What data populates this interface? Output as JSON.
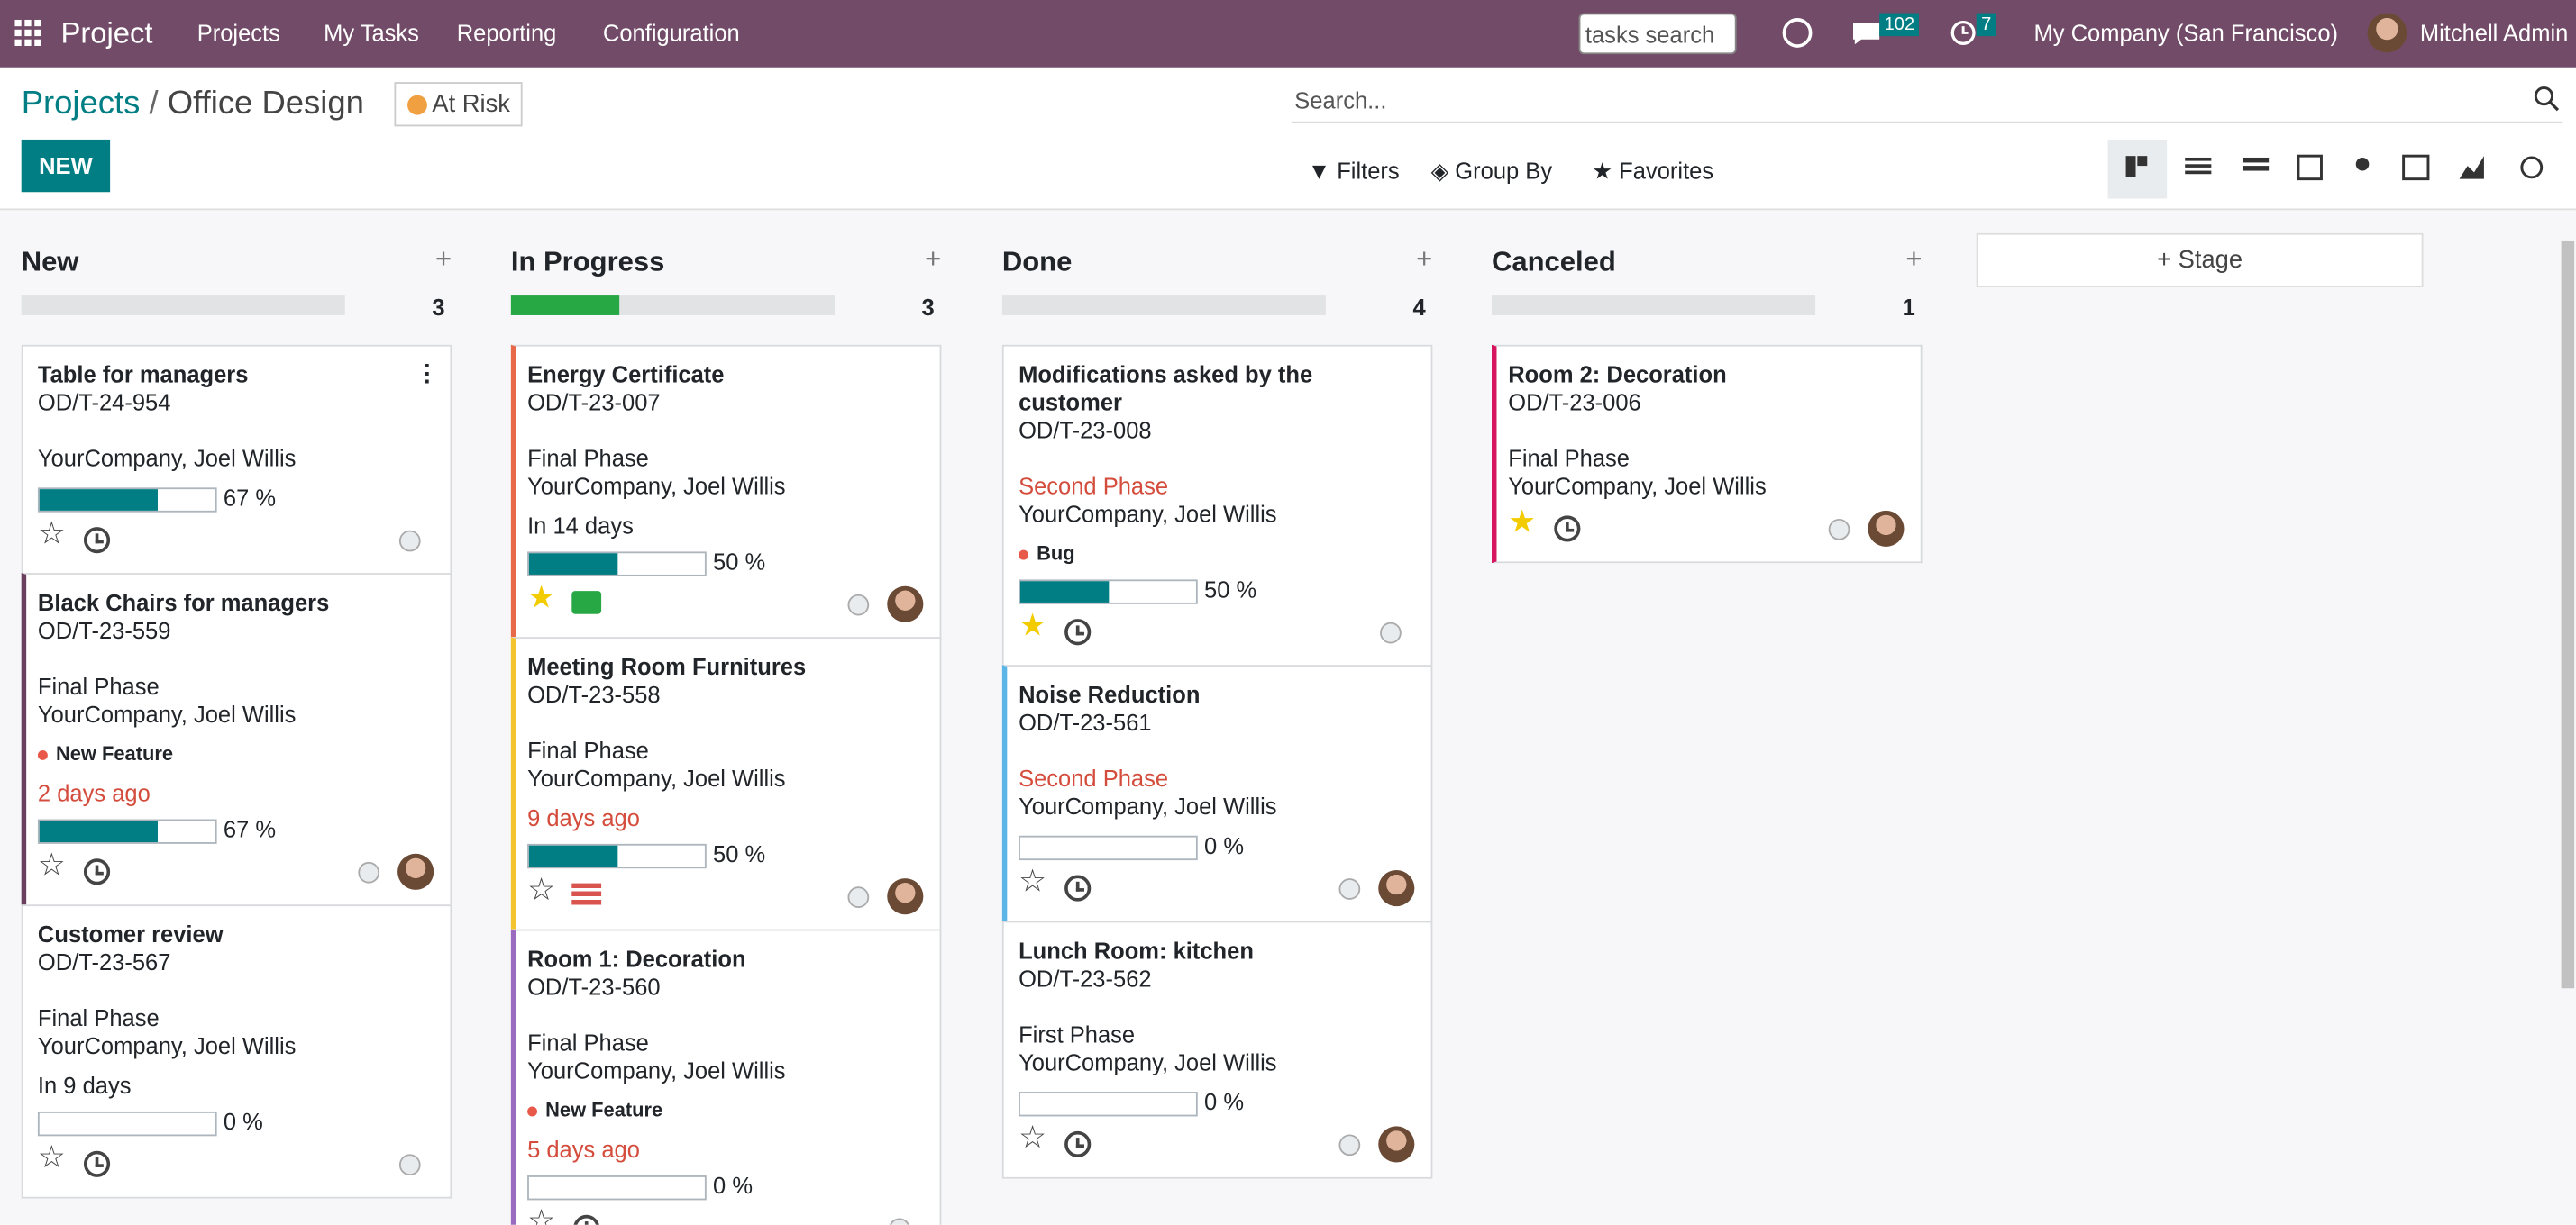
{
  "navbar": {
    "app": "Project",
    "menu": [
      "Projects",
      "My Tasks",
      "Reporting",
      "Configuration"
    ],
    "search_placeholder": "tasks search",
    "messages": 102,
    "activities": 7,
    "company": "My Company (San Francisco)",
    "user": "Mitchell Admin"
  },
  "breadcrumb": {
    "parent": "Projects",
    "current": "Office Design"
  },
  "status": "At Risk",
  "new_button": "NEW",
  "search_placeholder": "Search...",
  "filters": [
    "Filters",
    "Group By",
    "Favorites"
  ],
  "add_stage": "Stage",
  "columns": [
    {
      "name": "New",
      "count": 3,
      "cards": [
        {
          "title": "Table for managers",
          "ref": "OD/T-24-954",
          "customer": "YourCompany, Joel Willis",
          "progress": {
            "value": 67,
            "label": "67 %"
          }
        },
        {
          "title": "Black Chairs for managers",
          "ref": "OD/T-23-559",
          "stage": "Final Phase",
          "customer": "YourCompany, Joel Willis",
          "tag": "New Feature",
          "deadline": "2 days ago",
          "overdue": true,
          "progress": {
            "value": 67,
            "label": "67 %"
          },
          "avatar": true,
          "color": "#6b3e5e"
        },
        {
          "title": "Customer review",
          "ref": "OD/T-23-567",
          "stage": "Final Phase",
          "customer": "YourCompany, Joel Willis",
          "deadline": "In 9 days",
          "progress": {
            "value": 0,
            "label": "0 %"
          }
        }
      ]
    },
    {
      "name": "In Progress",
      "count": 3,
      "cards": [
        {
          "title": "Energy Certificate",
          "ref": "OD/T-23-007",
          "stage": "Final Phase",
          "customer": "YourCompany, Joel Willis",
          "deadline": "In 14 days",
          "progress": {
            "value": 50,
            "label": "50 %"
          },
          "starred": true,
          "activity": "mail",
          "avatar": true,
          "color": "#e8694a"
        },
        {
          "title": "Meeting Room Furnitures",
          "ref": "OD/T-23-558",
          "stage": "Final Phase",
          "customer": "YourCompany, Joel Willis",
          "deadline": "9 days ago",
          "overdue": true,
          "progress": {
            "value": 50,
            "label": "50 %"
          },
          "activity": "list",
          "avatar": true,
          "color": "#f4c430"
        },
        {
          "title": "Room 1: Decoration",
          "ref": "OD/T-23-560",
          "stage": "Final Phase",
          "customer": "YourCompany, Joel Willis",
          "tag": "New Feature",
          "deadline": "5 days ago",
          "overdue": true,
          "progress": {
            "value": 0,
            "label": "0 %"
          },
          "color": "#9b6bc0"
        }
      ]
    },
    {
      "name": "Done",
      "count": 4,
      "cards": [
        {
          "title": "Modifications asked by the customer",
          "ref": "OD/T-23-008",
          "stage": "Second Phase",
          "stage_alert": true,
          "customer": "YourCompany, Joel Willis",
          "tag": "Bug",
          "progress": {
            "value": 50,
            "label": "50 %"
          },
          "starred": true
        },
        {
          "title": "Noise Reduction",
          "ref": "OD/T-23-561",
          "stage": "Second Phase",
          "stage_alert": true,
          "customer": "YourCompany, Joel Willis",
          "progress": {
            "value": 0,
            "label": "0 %"
          },
          "avatar": true,
          "color": "#5bb5e6"
        },
        {
          "title": "Lunch Room: kitchen",
          "ref": "OD/T-23-562",
          "stage": "First Phase",
          "customer": "YourCompany, Joel Willis",
          "progress": {
            "value": 0,
            "label": "0 %"
          },
          "avatar": true
        }
      ]
    },
    {
      "name": "Canceled",
      "count": 1,
      "cards": [
        {
          "title": "Room 2: Decoration",
          "ref": "OD/T-23-006",
          "stage": "Final Phase",
          "customer": "YourCompany, Joel Willis",
          "starred": true,
          "avatar": true,
          "color": "#d6145f"
        }
      ]
    }
  ]
}
